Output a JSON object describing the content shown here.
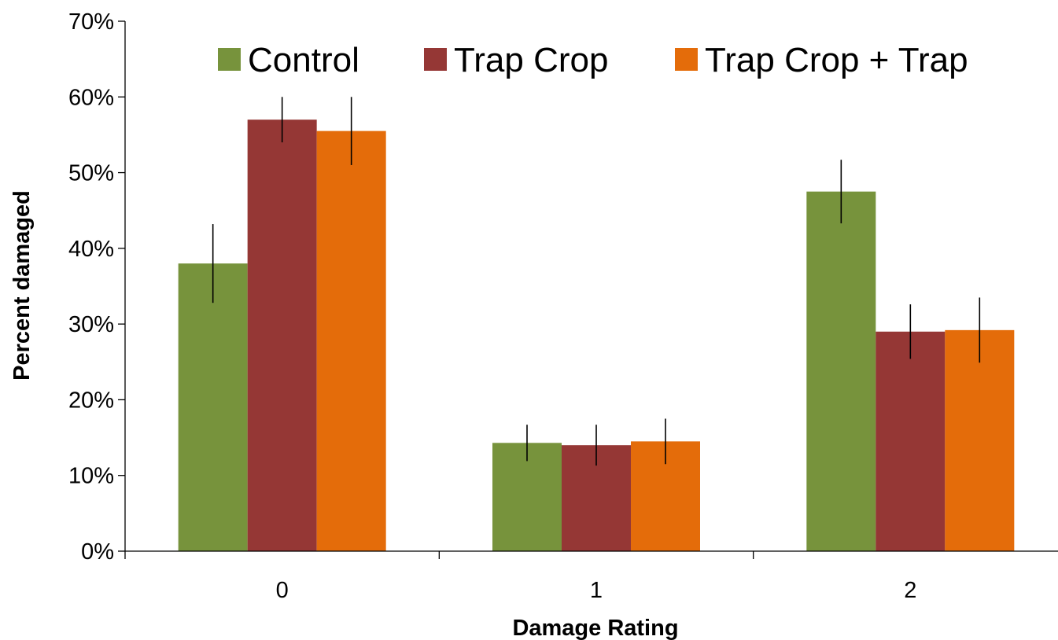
{
  "chart_data": {
    "type": "bar",
    "xlabel": "Damage Rating",
    "ylabel": "Percent damaged",
    "categories": [
      "0",
      "1",
      "2"
    ],
    "ylim": [
      0,
      0.7
    ],
    "y_ticks": [
      0,
      0.1,
      0.2,
      0.3,
      0.4,
      0.5,
      0.6,
      0.7
    ],
    "y_tick_labels": [
      "0%",
      "10%",
      "20%",
      "30%",
      "40%",
      "50%",
      "60%",
      "70%"
    ],
    "y_tick_format": "percent",
    "grid": false,
    "legend_position": "top",
    "error_bars": true,
    "series": [
      {
        "name": "Control",
        "color": "#77933c",
        "values": [
          0.38,
          0.143,
          0.475
        ],
        "error": [
          0.052,
          0.024,
          0.042
        ]
      },
      {
        "name": "Trap Crop",
        "color": "#953735",
        "values": [
          0.57,
          0.14,
          0.29
        ],
        "error": [
          0.03,
          0.027,
          0.036
        ]
      },
      {
        "name": "Trap Crop + Trap",
        "color": "#e46c0a",
        "values": [
          0.555,
          0.145,
          0.292
        ],
        "error": [
          0.045,
          0.03,
          0.043
        ]
      }
    ]
  }
}
